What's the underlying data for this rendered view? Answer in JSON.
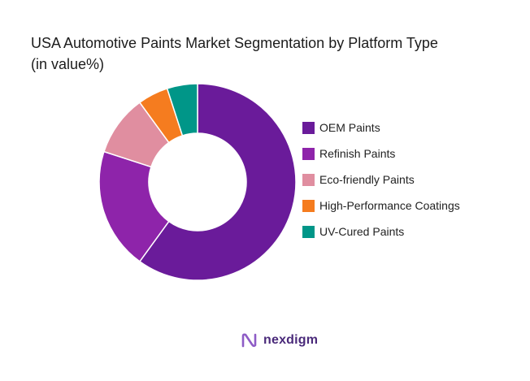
{
  "title_line1": "USA Automotive Paints Market Segmentation by Platform Type",
  "title_line2": "(in value%)",
  "chart_data": {
    "type": "pie",
    "style": "donut",
    "title": "USA Automotive Paints Market Segmentation by Platform Type (in value%)",
    "legend_position": "right",
    "categories": [
      "OEM Paints",
      "Refinish Paints",
      "Eco-friendly Paints",
      "High-Performance Coatings",
      "UV-Cured Paints"
    ],
    "values": [
      60,
      20,
      10,
      5,
      5
    ],
    "colors": [
      "#6a1b9a",
      "#8e24aa",
      "#e08ea0",
      "#f57c1f",
      "#009688"
    ]
  },
  "brand": {
    "name": "nexdigm",
    "logo_icon": "nexdigm-logo-icon",
    "color": "#4a2a7a"
  }
}
